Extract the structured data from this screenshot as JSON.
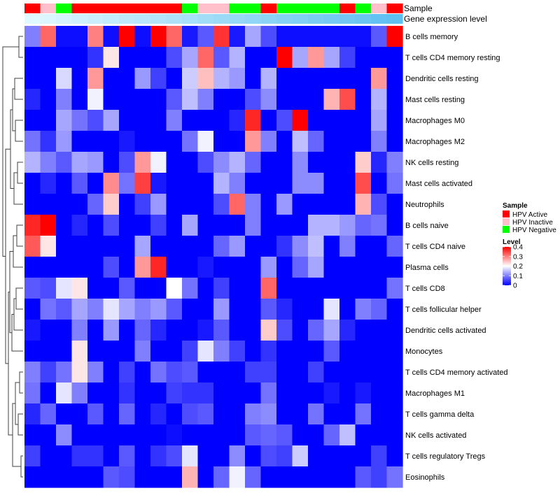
{
  "chart_data": {
    "type": "heatmap",
    "annotation_tracks": [
      "Sample",
      "Gene expression level"
    ],
    "column_samples": [
      "HPV Active",
      "HPV Inactive",
      "HPV Negative",
      "HPV Active",
      "HPV Active",
      "HPV Active",
      "HPV Active",
      "HPV Active",
      "HPV Active",
      "HPV Active",
      "HPV Negative",
      "HPV Inactive",
      "HPV Inactive",
      "HPV Negative",
      "HPV Negative",
      "HPV Active",
      "HPV Negative",
      "HPV Negative",
      "HPV Negative",
      "HPV Negative",
      "HPV Active",
      "HPV Negative",
      "HPV Inactive",
      "HPV Active"
    ],
    "column_expression": [
      0.0,
      0.04,
      0.09,
      0.13,
      0.17,
      0.22,
      0.26,
      0.3,
      0.35,
      0.39,
      0.43,
      0.48,
      0.52,
      0.57,
      0.61,
      0.65,
      0.7,
      0.74,
      0.78,
      0.83,
      0.87,
      0.91,
      0.96,
      1.0
    ],
    "rows": [
      "B cells memory",
      "T cells CD4 memory resting",
      "Dendritic cells resting",
      "Mast cells resting",
      "Macrophages M0",
      "Macrophages M2",
      "NK cells resting",
      "Mast cells activated",
      "Neutrophils",
      "B cells naive",
      "T cells CD4 naive",
      "Plasma cells",
      "T cells CD8",
      "T cells follicular helper",
      "Dendritic cells activated",
      "Monocytes",
      "T cells CD4 memory activated",
      "Macrophages M1",
      "T cells gamma delta",
      "NK cells activated",
      "T cells regulatory  Tregs",
      "Eosinophils"
    ],
    "values": [
      [
        0.1,
        0.32,
        0.01,
        0.01,
        0.3,
        0.01,
        0.4,
        0.01,
        0.4,
        0.32,
        0.02,
        0.07,
        0.36,
        0.02,
        0.13,
        0.06,
        0.01,
        0.01,
        0.01,
        0.01,
        0.01,
        0.01,
        0.07,
        0.4
      ],
      [
        0.0,
        0.0,
        0.0,
        0.0,
        0.04,
        0.22,
        0.0,
        0.0,
        0.0,
        0.06,
        0.13,
        0.32,
        0.07,
        0.14,
        0.0,
        0.0,
        0.4,
        0.13,
        0.28,
        0.13,
        0.05,
        0.0,
        0.0,
        0.0
      ],
      [
        0.0,
        0.0,
        0.17,
        0.0,
        0.28,
        0.0,
        0.0,
        0.12,
        0.05,
        0.0,
        0.16,
        0.25,
        0.14,
        0.12,
        0.0,
        0.14,
        0.0,
        0.0,
        0.0,
        0.0,
        0.0,
        0.0,
        0.28,
        0.0
      ],
      [
        0.03,
        0.0,
        0.1,
        0.0,
        0.19,
        0.0,
        0.0,
        0.0,
        0.0,
        0.07,
        0.15,
        0.1,
        0.0,
        0.0,
        0.06,
        0.11,
        0.0,
        0.0,
        0.0,
        0.26,
        0.34,
        0.0,
        0.14,
        0.0
      ],
      [
        0.0,
        0.0,
        0.13,
        0.09,
        0.06,
        0.13,
        0.0,
        0.0,
        0.0,
        0.1,
        0.0,
        0.0,
        0.0,
        0.03,
        0.37,
        0.0,
        0.06,
        0.4,
        0.0,
        0.0,
        0.0,
        0.0,
        0.13,
        0.0
      ],
      [
        0.09,
        0.04,
        0.12,
        0.0,
        0.0,
        0.0,
        0.02,
        0.0,
        0.0,
        0.0,
        0.09,
        0.19,
        0.0,
        0.0,
        0.28,
        0.1,
        0.0,
        0.15,
        0.08,
        0.0,
        0.0,
        0.0,
        0.1,
        0.0
      ],
      [
        0.14,
        0.1,
        0.07,
        0.13,
        0.12,
        0.0,
        0.06,
        0.28,
        0.19,
        0.0,
        0.0,
        0.06,
        0.11,
        0.14,
        0.08,
        0.0,
        0.0,
        0.11,
        0.0,
        0.0,
        0.0,
        0.24,
        0.03,
        0.1
      ],
      [
        0.0,
        0.03,
        0.0,
        0.07,
        0.0,
        0.29,
        0.09,
        0.35,
        0.02,
        0.0,
        0.0,
        0.0,
        0.14,
        0.1,
        0.0,
        0.0,
        0.0,
        0.11,
        0.11,
        0.0,
        0.0,
        0.34,
        0.0,
        0.09
      ],
      [
        0.0,
        0.0,
        0.0,
        0.0,
        0.08,
        0.24,
        0.0,
        0.05,
        0.12,
        0.0,
        0.0,
        0.0,
        0.06,
        0.32,
        0.1,
        0.0,
        0.12,
        0.0,
        0.0,
        0.0,
        0.0,
        0.26,
        0.06,
        0.0
      ],
      [
        0.37,
        0.4,
        0.0,
        0.03,
        0.0,
        0.06,
        0.0,
        0.0,
        0.05,
        0.0,
        0.13,
        0.0,
        0.0,
        0.0,
        0.1,
        0.0,
        0.0,
        0.0,
        0.14,
        0.14,
        0.12,
        0.08,
        0.09,
        0.0
      ],
      [
        0.33,
        0.22,
        0.0,
        0.0,
        0.0,
        0.0,
        0.0,
        0.13,
        0.0,
        0.0,
        0.0,
        0.0,
        0.08,
        0.12,
        0.0,
        0.0,
        0.04,
        0.11,
        0.15,
        0.0,
        0.1,
        0.0,
        0.0,
        0.08
      ],
      [
        0.0,
        0.0,
        0.0,
        0.0,
        0.0,
        0.06,
        0.0,
        0.28,
        0.37,
        0.0,
        0.0,
        0.02,
        0.0,
        0.0,
        0.0,
        0.12,
        0.0,
        0.08,
        0.13,
        0.0,
        0.0,
        0.0,
        0.0,
        0.0
      ],
      [
        0.07,
        0.06,
        0.18,
        0.22,
        0.0,
        0.0,
        0.07,
        0.0,
        0.0,
        0.2,
        0.09,
        0.0,
        0.05,
        0.0,
        0.0,
        0.32,
        0.0,
        0.0,
        0.0,
        0.0,
        0.0,
        0.0,
        0.0,
        0.09
      ],
      [
        0.0,
        0.09,
        0.07,
        0.13,
        0.1,
        0.18,
        0.13,
        0.1,
        0.12,
        0.07,
        0.0,
        0.0,
        0.12,
        0.0,
        0.0,
        0.07,
        0.03,
        0.0,
        0.0,
        0.18,
        0.0,
        0.1,
        0.08,
        0.0
      ],
      [
        0.02,
        0.0,
        0.0,
        0.1,
        0.0,
        0.12,
        0.0,
        0.08,
        0.03,
        0.0,
        0.0,
        0.02,
        0.07,
        0.0,
        0.0,
        0.24,
        0.06,
        0.0,
        0.08,
        0.13,
        0.03,
        0.0,
        0.0,
        0.0
      ],
      [
        0.0,
        0.0,
        0.0,
        0.22,
        0.0,
        0.0,
        0.0,
        0.1,
        0.0,
        0.0,
        0.05,
        0.18,
        0.1,
        0.05,
        0.0,
        0.04,
        0.0,
        0.0,
        0.0,
        0.07,
        0.0,
        0.0,
        0.0,
        0.0
      ],
      [
        0.1,
        0.05,
        0.09,
        0.22,
        0.1,
        0.0,
        0.05,
        0.0,
        0.09,
        0.06,
        0.07,
        0.0,
        0.0,
        0.0,
        0.05,
        0.05,
        0.0,
        0.0,
        0.05,
        0.0,
        0.0,
        0.0,
        0.0,
        0.0
      ],
      [
        0.09,
        0.0,
        0.18,
        0.1,
        0.0,
        0.0,
        0.04,
        0.0,
        0.0,
        0.05,
        0.04,
        0.04,
        0.0,
        0.0,
        0.0,
        0.09,
        0.0,
        0.0,
        0.0,
        0.02,
        0.0,
        0.02,
        0.0,
        0.0
      ],
      [
        0.03,
        0.08,
        0.0,
        0.0,
        0.07,
        0.0,
        0.08,
        0.0,
        0.03,
        0.0,
        0.06,
        0.07,
        0.0,
        0.0,
        0.1,
        0.11,
        0.0,
        0.0,
        0.09,
        0.0,
        0.0,
        0.09,
        0.0,
        0.0
      ],
      [
        0.0,
        0.0,
        0.11,
        0.0,
        0.0,
        0.0,
        0.0,
        0.0,
        0.0,
        0.01,
        0.0,
        0.0,
        0.0,
        0.0,
        0.07,
        0.08,
        0.07,
        0.0,
        0.0,
        0.08,
        0.15,
        0.0,
        0.0,
        0.0
      ],
      [
        0.05,
        0.0,
        0.0,
        0.04,
        0.04,
        0.0,
        0.07,
        0.0,
        0.04,
        0.06,
        0.18,
        0.0,
        0.0,
        0.11,
        0.0,
        0.06,
        0.05,
        0.16,
        0.0,
        0.0,
        0.0,
        0.0,
        0.05,
        0.0
      ],
      [
        0.0,
        0.0,
        0.0,
        0.0,
        0.0,
        0.07,
        0.06,
        0.0,
        0.0,
        0.0,
        0.26,
        0.0,
        0.08,
        0.19,
        0.08,
        0.0,
        0.0,
        0.0,
        0.0,
        0.0,
        0.0,
        0.07,
        0.05,
        0.09
      ]
    ],
    "legend": {
      "sample_title": "Sample",
      "sample_entries": [
        {
          "label": "HPV Active",
          "color": "#ff0000"
        },
        {
          "label": "HPV Inactive",
          "color": "#ffc0cb"
        },
        {
          "label": "HPV Negative",
          "color": "#00ff00"
        }
      ],
      "level_title": "Level",
      "level_range": [
        0,
        0.4
      ],
      "level_ticks": [
        {
          "value": 0.4,
          "label": "0.4"
        },
        {
          "value": 0.3,
          "label": "0.3"
        },
        {
          "value": 0.2,
          "label": "0.2"
        },
        {
          "value": 0.1,
          "label": "0.1"
        },
        {
          "value": 0.0,
          "label": "0"
        }
      ]
    },
    "colors": {
      "low": "#0000ff",
      "mid": "#ffffff",
      "high": "#ff0000",
      "expression_low": "#e0f8ff",
      "expression_high": "#5ec0f0"
    }
  }
}
